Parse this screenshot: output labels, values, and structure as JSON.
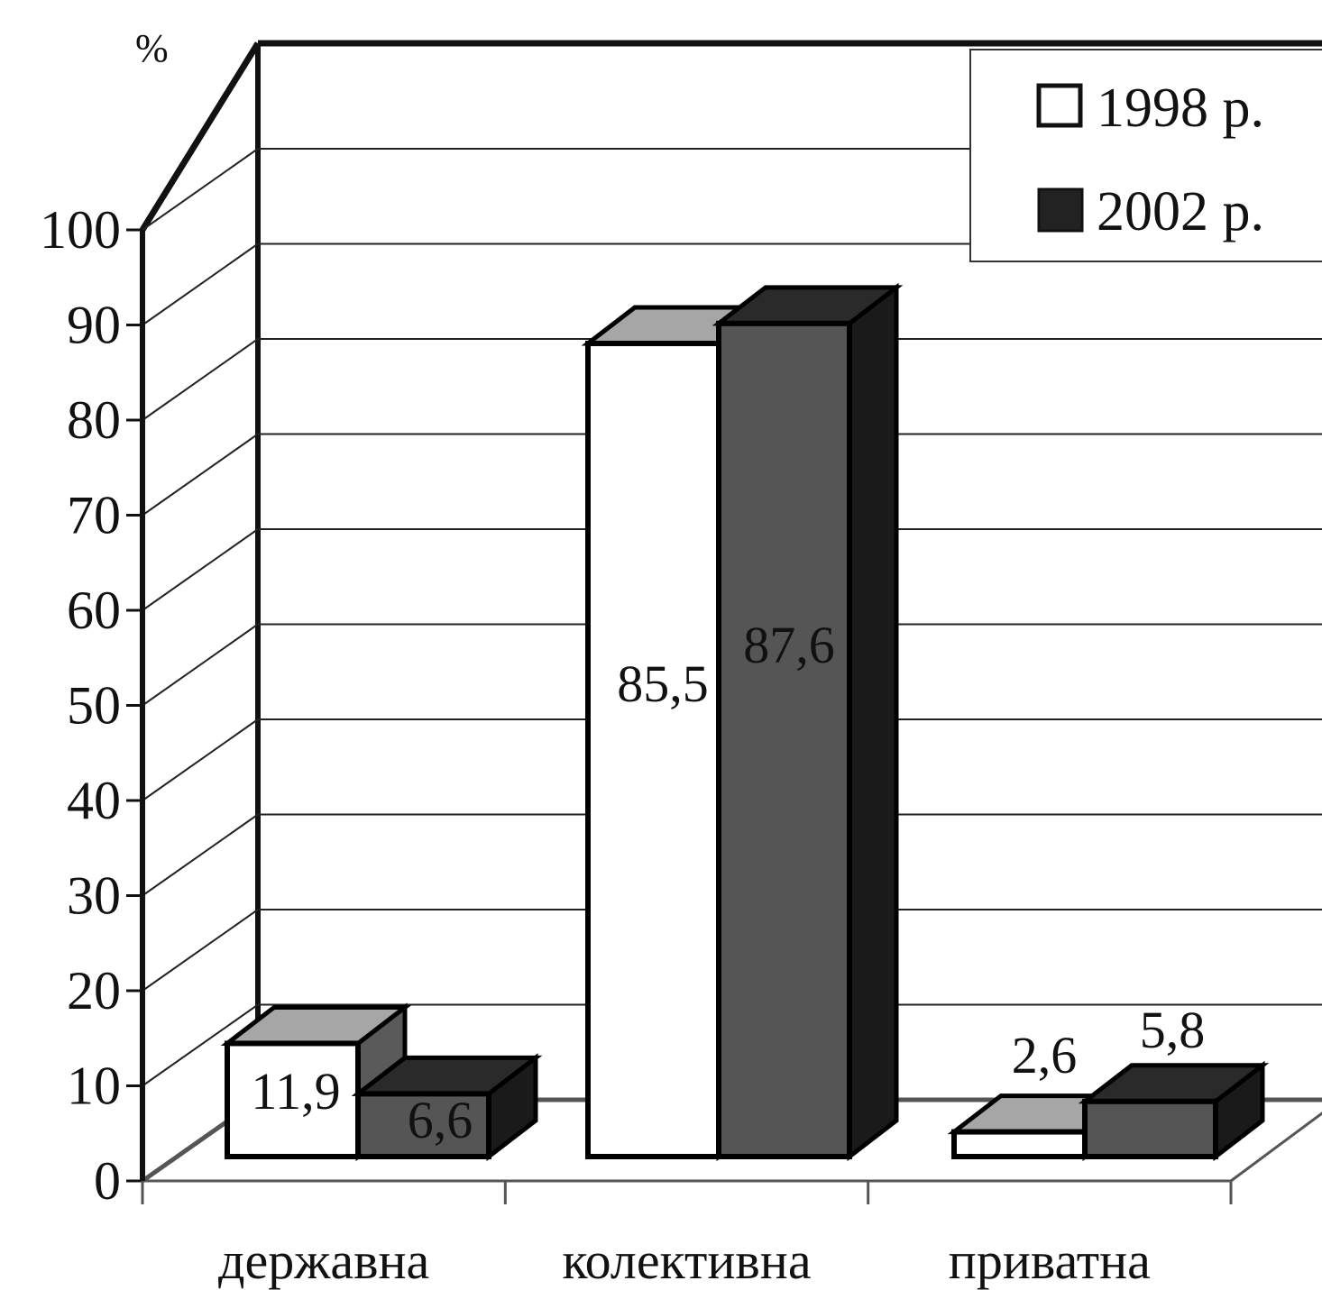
{
  "chart_data": {
    "type": "bar",
    "unit_label": "%",
    "categories": [
      "державна",
      "колективна",
      "приватна"
    ],
    "series": [
      {
        "name": "1998 р.",
        "values": [
          11.9,
          85.5,
          2.6
        ],
        "labels": [
          "11,9",
          "85,5",
          "2,6"
        ]
      },
      {
        "name": "2002 р.",
        "values": [
          6.6,
          87.6,
          5.8
        ],
        "labels": [
          "6,6",
          "87,6",
          "5,8"
        ]
      }
    ],
    "ylim": [
      0,
      100
    ],
    "yticks": [
      0,
      10,
      20,
      30,
      40,
      50,
      60,
      70,
      80,
      90,
      100
    ],
    "grid": true,
    "legend_position": "top-right",
    "three_d": true
  },
  "colors": {
    "series_1998_front": "#ffffff",
    "series_1998_top": "#a6a6a6",
    "series_1998_side": "#5a5a5a",
    "series_2002_front": "#555555",
    "series_2002_top": "#2a2a2a",
    "series_2002_side": "#1a1a1a",
    "legend_2002_swatch": "#222222",
    "grid": "#222222"
  }
}
